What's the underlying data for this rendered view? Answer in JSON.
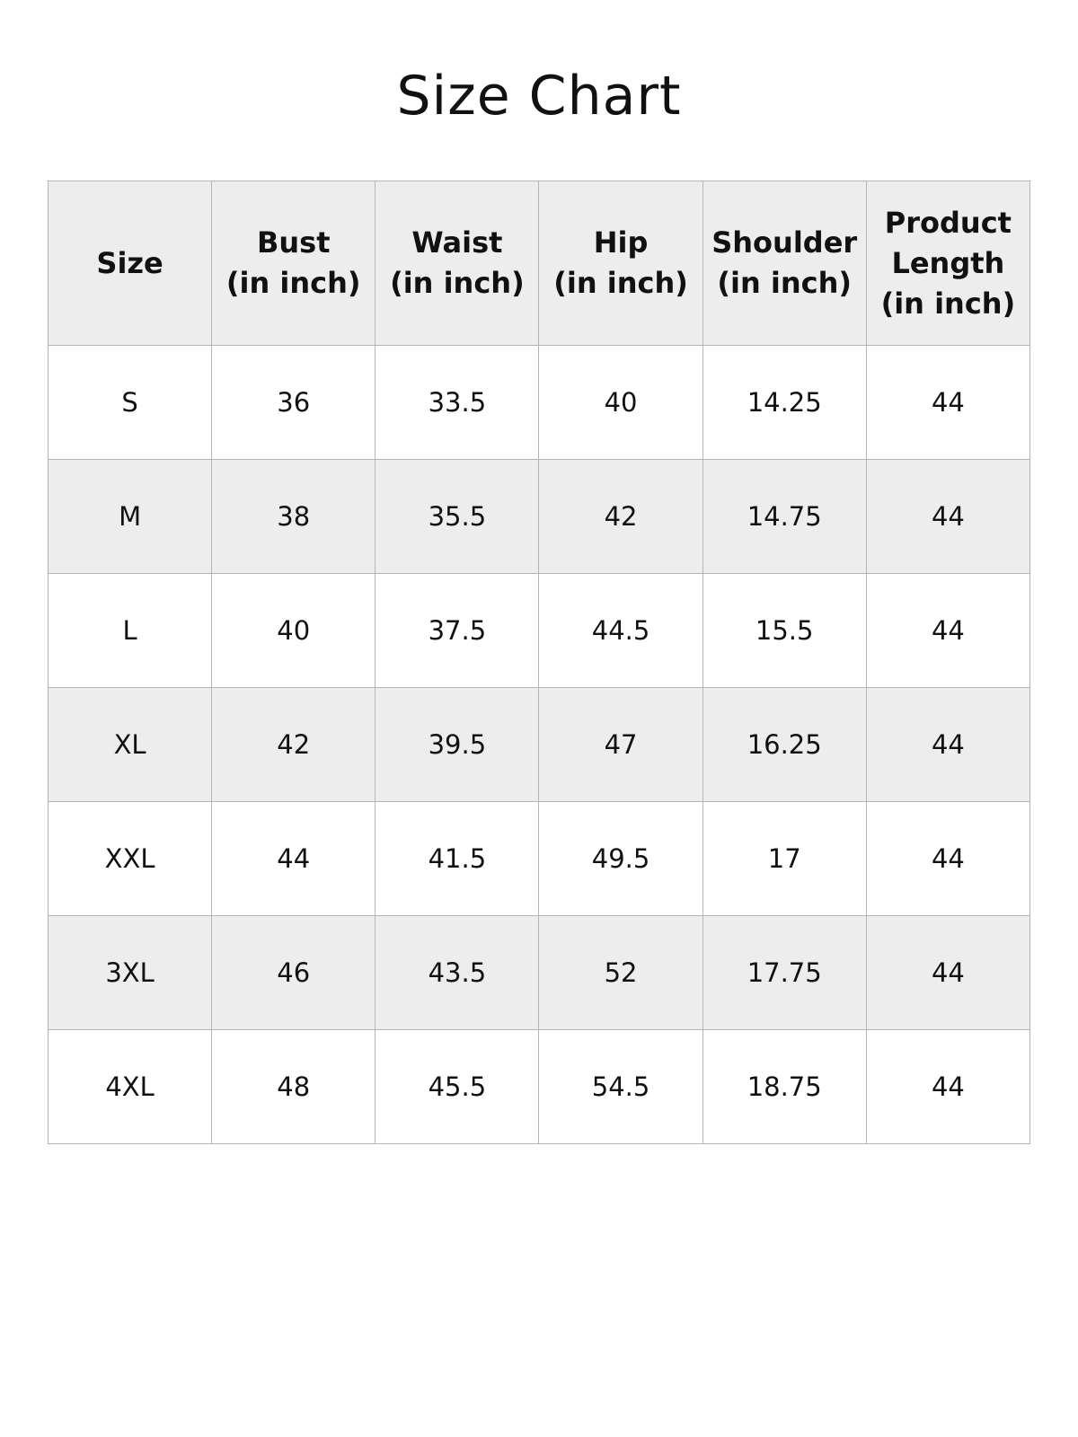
{
  "title": "Size Chart",
  "headers": [
    "Size",
    "Bust\n(in inch)",
    "Waist\n(in inch)",
    "Hip\n(in inch)",
    "Shoulder\n(in inch)",
    "Product\nLength\n(in inch)"
  ],
  "rows": [
    [
      "S",
      "36",
      "33.5",
      "40",
      "14.25",
      "44"
    ],
    [
      "M",
      "38",
      "35.5",
      "42",
      "14.75",
      "44"
    ],
    [
      "L",
      "40",
      "37.5",
      "44.5",
      "15.5",
      "44"
    ],
    [
      "XL",
      "42",
      "39.5",
      "47",
      "16.25",
      "44"
    ],
    [
      "XXL",
      "44",
      "41.5",
      "49.5",
      "17",
      "44"
    ],
    [
      "3XL",
      "46",
      "43.5",
      "52",
      "17.75",
      "44"
    ],
    [
      "4XL",
      "48",
      "45.5",
      "54.5",
      "18.75",
      "44"
    ]
  ],
  "colors": {
    "header_bg": "#ededed",
    "stripe_bg": "#ededed",
    "border": "#b5b5b5"
  }
}
